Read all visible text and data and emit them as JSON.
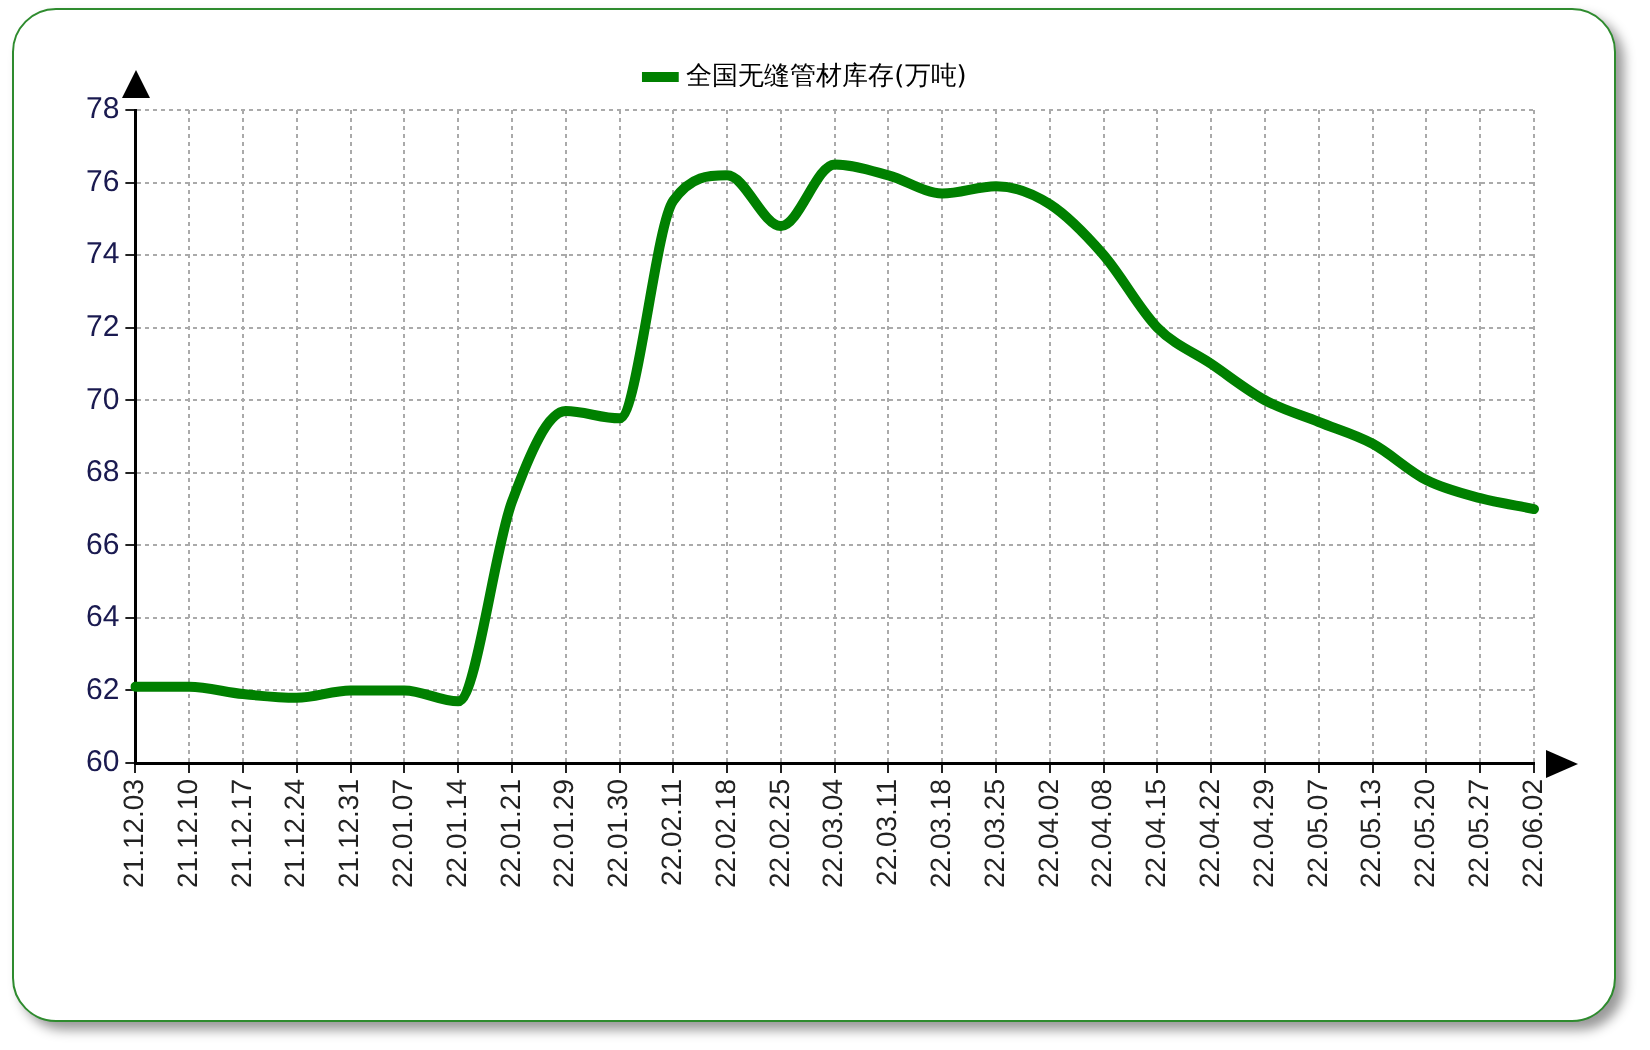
{
  "chart_data": {
    "type": "line",
    "categories": [
      "21.12.03",
      "21.12.10",
      "21.12.17",
      "21.12.24",
      "21.12.31",
      "22.01.07",
      "22.01.14",
      "22.01.21",
      "22.01.29",
      "22.01.30",
      "22.02.11",
      "22.02.18",
      "22.02.25",
      "22.03.04",
      "22.03.11",
      "22.03.18",
      "22.03.25",
      "22.04.02",
      "22.04.08",
      "22.04.15",
      "22.04.22",
      "22.04.29",
      "22.05.07",
      "22.05.13",
      "22.05.20",
      "22.05.27",
      "22.06.02"
    ],
    "series": [
      {
        "name": "全国无缝管材库存(万吨)",
        "color": "#008000",
        "values": [
          62.1,
          62.1,
          61.9,
          61.8,
          62.0,
          62.0,
          61.7,
          67.2,
          69.7,
          69.5,
          75.5,
          76.2,
          74.8,
          76.5,
          76.2,
          75.7,
          75.9,
          75.4,
          74.0,
          72.0,
          71.0,
          70.0,
          69.4,
          68.8,
          67.8,
          67.3,
          67.0
        ]
      }
    ],
    "ylim": [
      60,
      78
    ],
    "yticks": [
      60,
      62,
      64,
      66,
      68,
      70,
      72,
      74,
      76,
      78
    ],
    "grid": true,
    "legend": "top",
    "marker": "none",
    "line_style": "solid"
  }
}
